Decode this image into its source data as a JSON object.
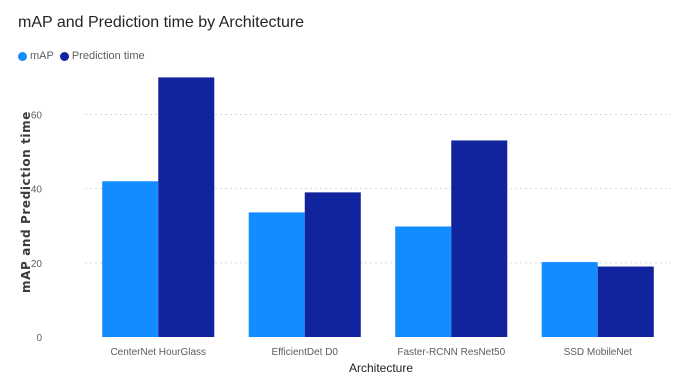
{
  "chart_data": {
    "type": "bar",
    "title": "mAP and Prediction time by Architecture",
    "xlabel": "Architecture",
    "ylabel": "mAP and Prediction time",
    "categories": [
      "CenterNet HourGlass",
      "EfficientDet D0",
      "Faster-RCNN ResNet50",
      "SSD MobileNet"
    ],
    "series": [
      {
        "name": "mAP",
        "values": [
          42,
          33.6,
          29.8,
          20.2
        ],
        "color": "#118dff"
      },
      {
        "name": "Prediction time",
        "values": [
          70,
          39,
          53,
          19
        ],
        "color": "#12239e"
      }
    ],
    "ylim": [
      0,
      72
    ],
    "yticks": [
      0,
      20,
      40,
      60
    ],
    "grid": true,
    "legend_position": "top-left"
  }
}
